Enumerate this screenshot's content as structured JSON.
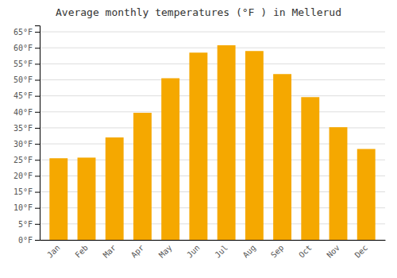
{
  "chart_data": {
    "type": "bar",
    "title": "Average monthly temperatures (°F ) in Mellerud",
    "categories": [
      "Jan",
      "Feb",
      "Mar",
      "Apr",
      "May",
      "Jun",
      "Jul",
      "Aug",
      "Sep",
      "Oct",
      "Nov",
      "Dec"
    ],
    "values": [
      25.5,
      25.7,
      32.0,
      39.7,
      50.5,
      58.5,
      60.8,
      59.0,
      51.8,
      44.6,
      35.2,
      28.4
    ],
    "color": "#F5A800",
    "ylim": [
      0,
      67
    ],
    "yticks": [
      {
        "value": 0,
        "label": "0°F"
      },
      {
        "value": 5,
        "label": "5°F"
      },
      {
        "value": 10,
        "label": "10°F"
      },
      {
        "value": 15,
        "label": "15°F"
      },
      {
        "value": 20,
        "label": "20°F"
      },
      {
        "value": 25,
        "label": "25°F"
      },
      {
        "value": 30,
        "label": "30°F"
      },
      {
        "value": 35,
        "label": "35°F"
      },
      {
        "value": 40,
        "label": "40°F"
      },
      {
        "value": 45,
        "label": "45°F"
      },
      {
        "value": 50,
        "label": "50°F"
      },
      {
        "value": 55,
        "label": "55°F"
      },
      {
        "value": 60,
        "label": "60°F"
      },
      {
        "value": 65,
        "label": "65°F"
      }
    ],
    "grid": true
  }
}
